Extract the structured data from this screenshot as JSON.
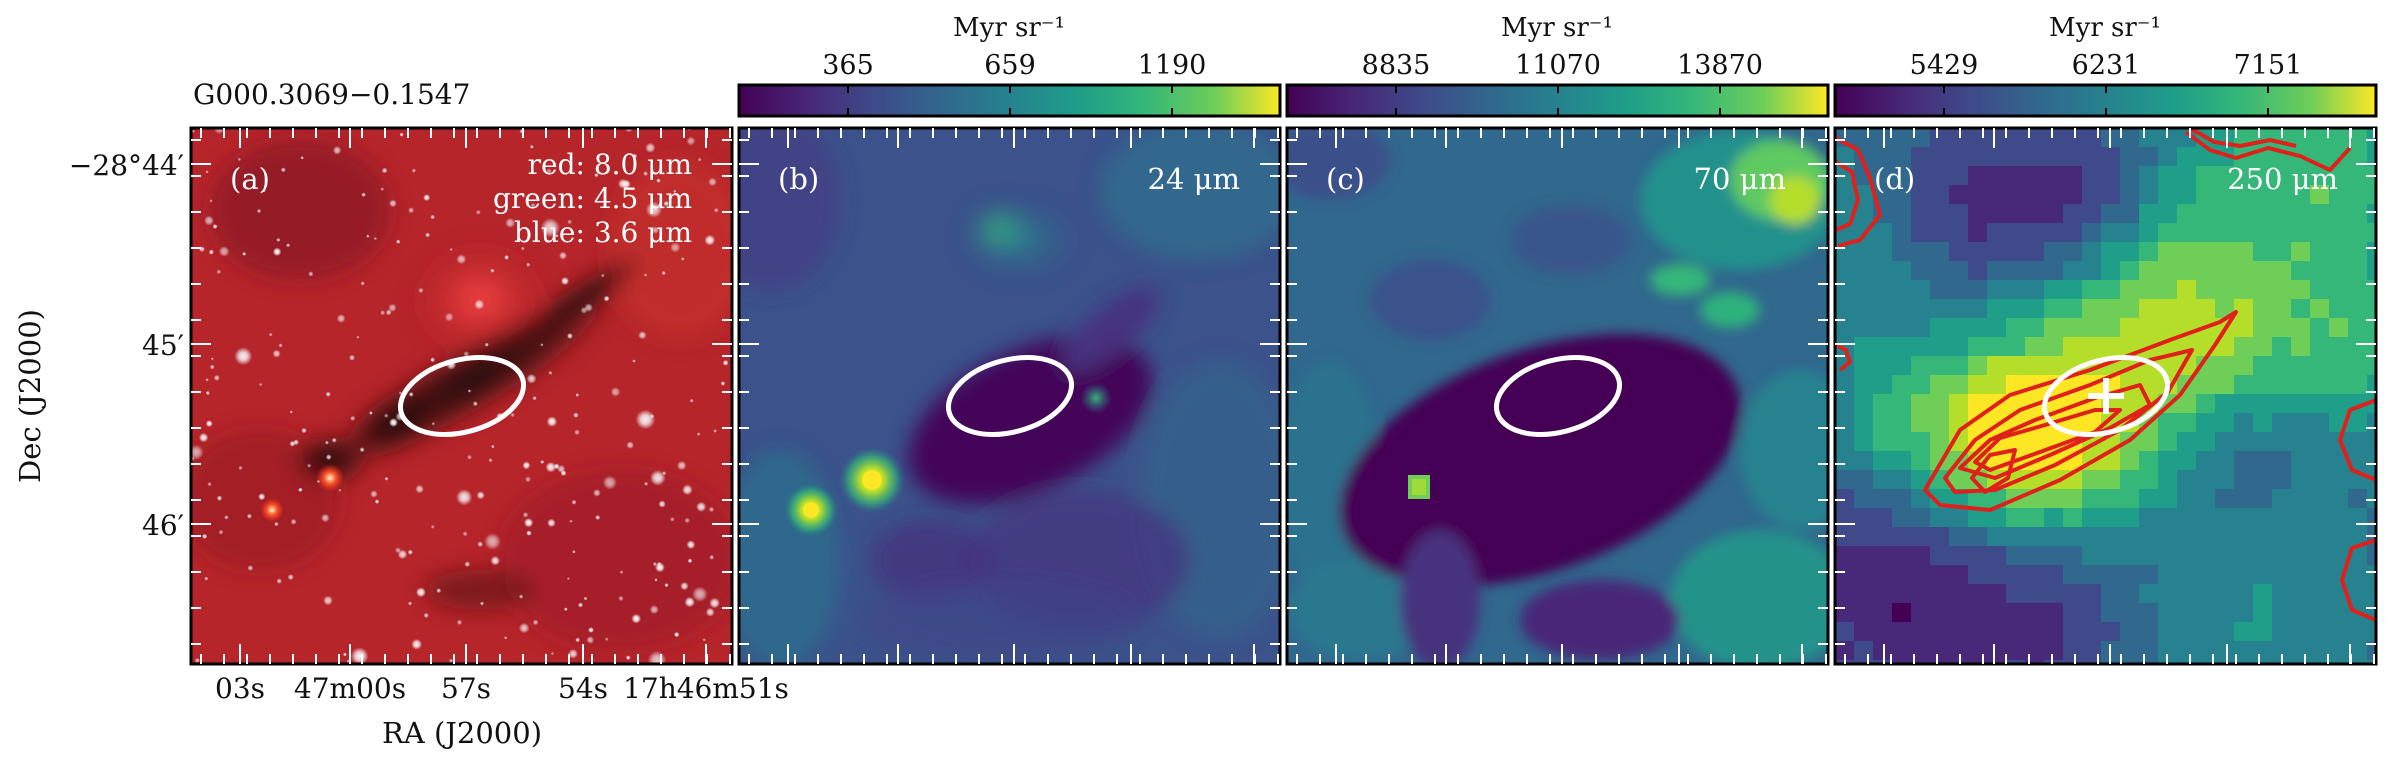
{
  "figure": {
    "source_name": "G000.3069−0.1547",
    "y_axis_label": "Dec (J2000)",
    "x_axis_label": "RA (J2000)",
    "dec_ticks": [
      "−28°44′",
      "45′",
      "46′"
    ],
    "ra_ticks": [
      "03s",
      "47m00s",
      "57s",
      "54s",
      "17h46m51s"
    ]
  },
  "panels": [
    {
      "letter": "(a)",
      "legend": [
        "red: 8.0 μm",
        "green: 4.5 μm",
        "blue: 3.6 μm"
      ]
    },
    {
      "letter": "(b)",
      "wavelength": "24 μm",
      "colorbar_unit": "Myr sr⁻¹",
      "colorbar_ticks": [
        "365",
        "659",
        "1190"
      ]
    },
    {
      "letter": "(c)",
      "wavelength": "70 μm",
      "colorbar_unit": "Myr sr⁻¹",
      "colorbar_ticks": [
        "8835",
        "11070",
        "13870"
      ]
    },
    {
      "letter": "(d)",
      "wavelength": "250 μm",
      "colorbar_unit": "Myr sr⁻¹",
      "colorbar_ticks": [
        "5429",
        "6231",
        "7151"
      ]
    }
  ],
  "colors": {
    "viridis_dark": "#440154",
    "viridis_mid": "#21918c",
    "viridis_bright": "#fde725",
    "aperture": "#ffffff",
    "contours": "#e0201b",
    "rgb_base": "#b5252a"
  }
}
